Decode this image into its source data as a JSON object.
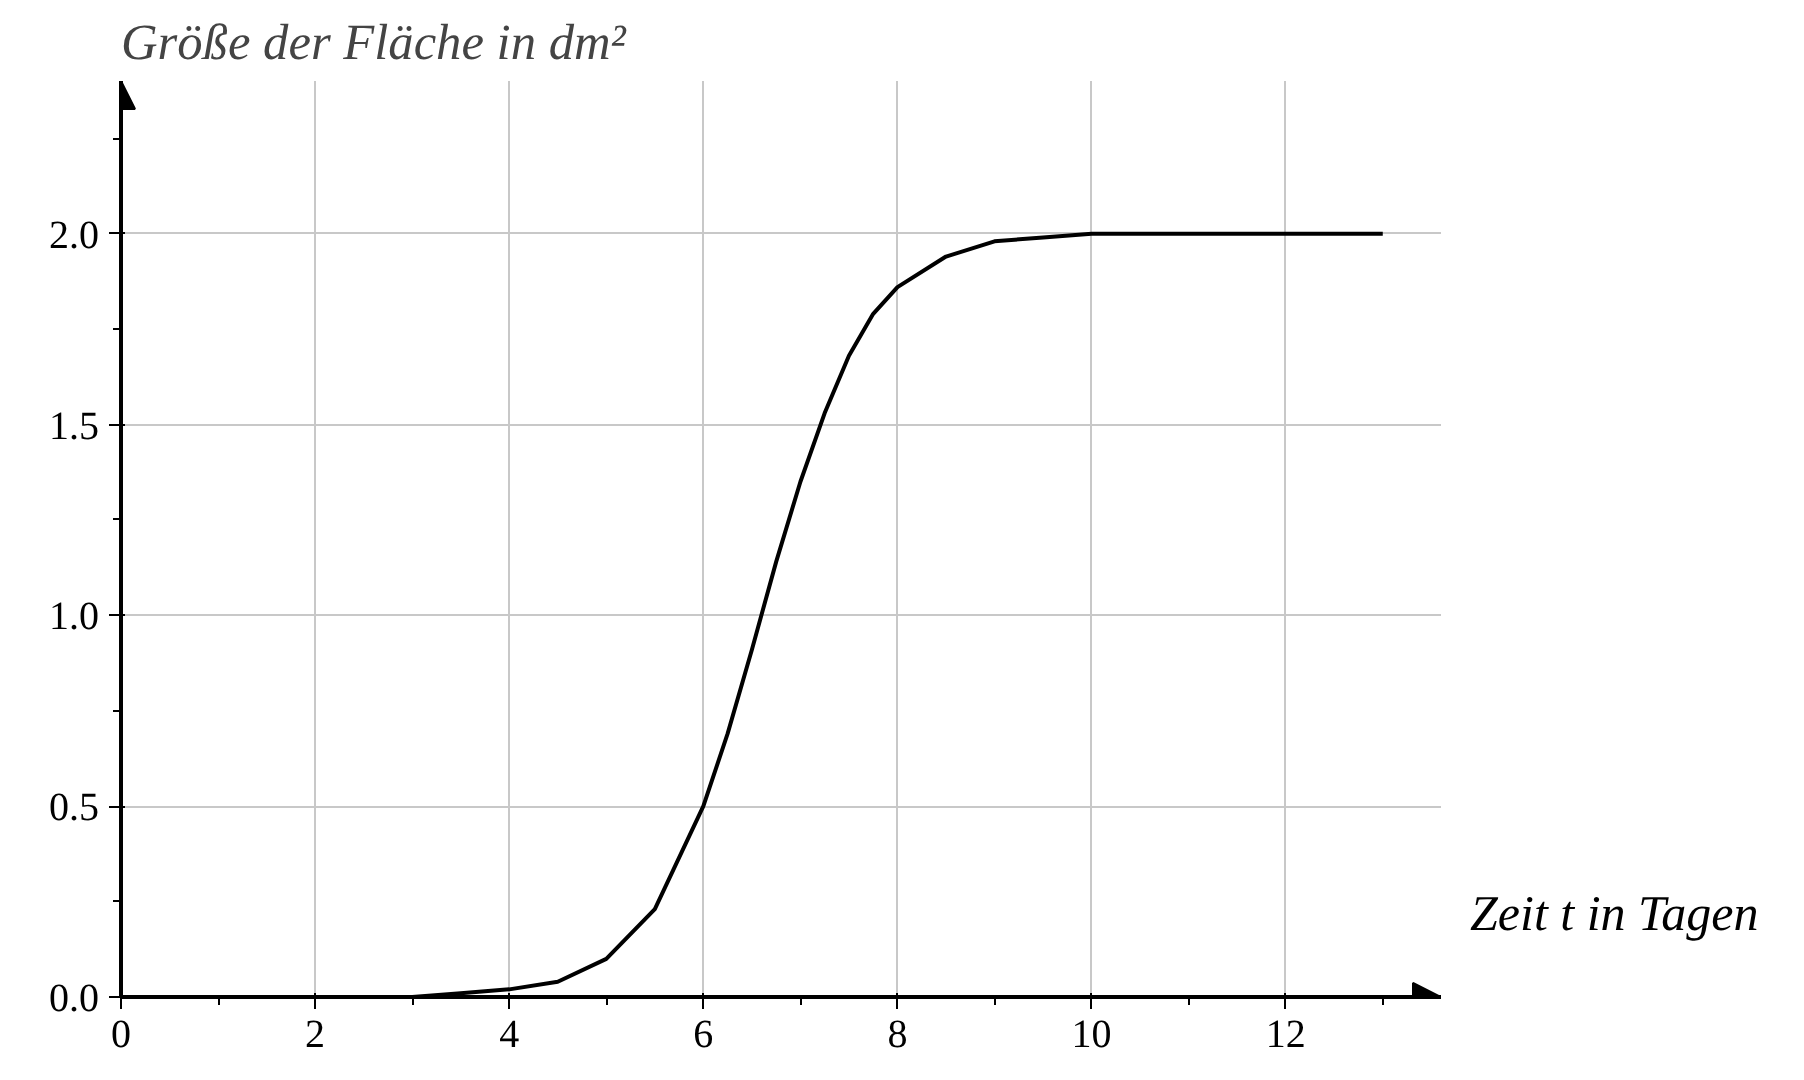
{
  "chart_data": {
    "type": "line",
    "ylabel": "Größe der Fläche in dm²",
    "xlabel": "Zeit t in Tagen",
    "x": [
      0,
      1,
      2,
      3,
      3.5,
      4,
      4.5,
      5,
      5.5,
      6,
      6.25,
      6.5,
      6.75,
      7,
      7.25,
      7.5,
      7.75,
      8,
      8.5,
      9,
      9.5,
      10,
      11,
      12,
      13
    ],
    "series": [
      {
        "color": "#000000",
        "values": [
          0.0,
          0.0,
          0.0,
          0.0,
          0.01,
          0.02,
          0.04,
          0.1,
          0.23,
          0.5,
          0.69,
          0.91,
          1.14,
          1.35,
          1.53,
          1.68,
          1.79,
          1.86,
          1.94,
          1.98,
          1.99,
          2.0,
          2.0,
          2.0,
          2.0
        ]
      }
    ],
    "xlim": [
      0,
      13.6
    ],
    "ylim": [
      0,
      2.4
    ],
    "xticks": [
      0,
      {
        "value": 1,
        "label": null
      },
      2,
      {
        "value": 3,
        "label": null
      },
      4,
      {
        "value": 5,
        "label": null
      },
      6,
      {
        "value": 7,
        "label": null
      },
      8,
      {
        "value": 9,
        "label": null
      },
      10,
      {
        "value": 11,
        "label": null
      },
      12,
      {
        "value": 13,
        "label": null
      }
    ],
    "yticks": [
      {
        "value": 0,
        "label": "0.0"
      },
      {
        "value": 0.25,
        "label": null
      },
      {
        "value": 0.5,
        "label": "0.5"
      },
      {
        "value": 0.75,
        "label": null
      },
      {
        "value": 1,
        "label": "1.0"
      },
      {
        "value": 1.25,
        "label": null
      },
      {
        "value": 1.5,
        "label": "1.5"
      },
      {
        "value": 1.75,
        "label": null
      },
      {
        "value": 2,
        "label": "2.0"
      },
      {
        "value": 2.25,
        "label": null
      }
    ],
    "grid": true,
    "marker": "none",
    "line_style": "solid"
  }
}
